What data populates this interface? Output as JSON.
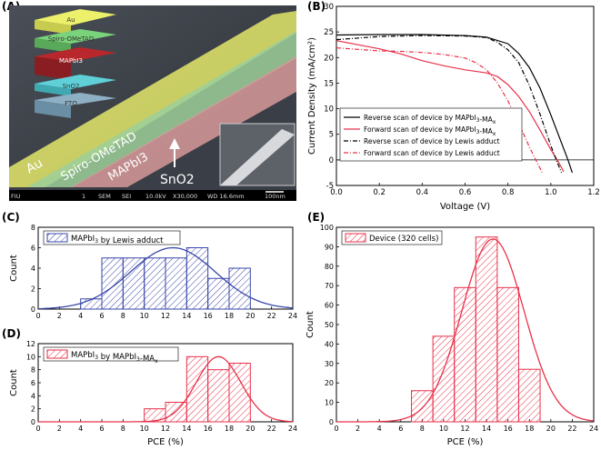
{
  "panels": {
    "a": "(A)",
    "b": "(B)",
    "c": "(C)",
    "d": "(D)",
    "e": "(E)"
  },
  "sem": {
    "layers": [
      "Au",
      "Spiro-OMeTAD",
      "MAPbI3",
      "SnO2",
      "FTO"
    ],
    "labels": {
      "au": "Au",
      "spiro": "Spiro-OMeTAD",
      "mapbi": "MAPbI3",
      "sno2": "SnO2"
    },
    "databar": {
      "vendor": "FIU",
      "n": "1",
      "mode": "SEM",
      "det": "SEI",
      "kv": "10.0kV",
      "mag": "X30,000",
      "wd": "WD 16.6mm",
      "scale": "100nm"
    },
    "colors": {
      "au": "#e3e86a",
      "spiro": "#9ccf9a",
      "mapbi": "#d89a9a",
      "sno2": "#9ad8de",
      "fto": "#b0c7d6",
      "inset_au": "#ecf06a",
      "inset_spiro": "#7ad27a",
      "inset_mapbi": "#b8272c",
      "inset_sno2": "#5fd0d8",
      "inset_fto": "#8eb0c4"
    }
  },
  "chart_data": [
    {
      "panel": "B",
      "type": "line",
      "xlabel": "Voltage (V)",
      "ylabel": "Current Density (mA/cm²)",
      "xlim": [
        0.0,
        1.2
      ],
      "ylim": [
        -5,
        30
      ],
      "xticks": [
        "0.0",
        "0.2",
        "0.4",
        "0.6",
        "0.8",
        "1.0",
        "1.2"
      ],
      "yticks": [
        "-5",
        "0",
        "5",
        "10",
        "15",
        "20",
        "25",
        "30"
      ],
      "legend_position": "bottom-left",
      "series": [
        {
          "name": "Reverse scan of device by MAPbI3-MAx",
          "color": "#000000",
          "dash": "solid",
          "points": [
            [
              0,
              24.4
            ],
            [
              0.2,
              24.5
            ],
            [
              0.4,
              24.5
            ],
            [
              0.6,
              24.3
            ],
            [
              0.7,
              24.0
            ],
            [
              0.8,
              22.7
            ],
            [
              0.85,
              20.8
            ],
            [
              0.9,
              18.0
            ],
            [
              0.95,
              14.0
            ],
            [
              1.0,
              8.8
            ],
            [
              1.05,
              3.3
            ],
            [
              1.08,
              0.0
            ],
            [
              1.1,
              -2.5
            ]
          ]
        },
        {
          "name": "Forward scan of device by MAPbI3-MAx",
          "color": "#e8314a",
          "dash": "solid",
          "points": [
            [
              0,
              23.3
            ],
            [
              0.1,
              22.5
            ],
            [
              0.2,
              21.7
            ],
            [
              0.3,
              20.7
            ],
            [
              0.4,
              19.4
            ],
            [
              0.5,
              18.4
            ],
            [
              0.6,
              17.6
            ],
            [
              0.7,
              17.0
            ],
            [
              0.75,
              16.3
            ],
            [
              0.8,
              14.7
            ],
            [
              0.85,
              12.4
            ],
            [
              0.9,
              9.4
            ],
            [
              0.95,
              5.8
            ],
            [
              1.0,
              2.0
            ],
            [
              1.03,
              0.0
            ],
            [
              1.06,
              -2.3
            ]
          ]
        },
        {
          "name": "Reverse scan of device by Lewis adduct",
          "color": "#000000",
          "dash": "dashdot",
          "points": [
            [
              0,
              23.5
            ],
            [
              0.2,
              24.1
            ],
            [
              0.4,
              24.3
            ],
            [
              0.6,
              24.2
            ],
            [
              0.7,
              23.9
            ],
            [
              0.75,
              23.0
            ],
            [
              0.8,
              21.5
            ],
            [
              0.85,
              19.0
            ],
            [
              0.9,
              14.5
            ],
            [
              0.95,
              8.9
            ],
            [
              1.0,
              2.8
            ],
            [
              1.03,
              -0.5
            ],
            [
              1.05,
              -2.5
            ]
          ]
        },
        {
          "name": "Forward scan of device by Lewis adduct",
          "color": "#e8314a",
          "dash": "dashdot",
          "points": [
            [
              0,
              21.9
            ],
            [
              0.1,
              21.6
            ],
            [
              0.2,
              21.3
            ],
            [
              0.3,
              21.2
            ],
            [
              0.4,
              21.0
            ],
            [
              0.5,
              20.6
            ],
            [
              0.6,
              19.9
            ],
            [
              0.65,
              19.0
            ],
            [
              0.7,
              17.6
            ],
            [
              0.75,
              15.1
            ],
            [
              0.8,
              11.5
            ],
            [
              0.85,
              7.2
            ],
            [
              0.9,
              2.5
            ],
            [
              0.93,
              0.0
            ],
            [
              0.96,
              -2.5
            ]
          ]
        }
      ]
    },
    {
      "panel": "C",
      "type": "bar",
      "legend": "MAPbI3 by Lewis adduct",
      "ylabel": "Count",
      "xlim": [
        0,
        24
      ],
      "ylim": [
        0,
        8
      ],
      "xticks": [
        "0",
        "2",
        "4",
        "6",
        "8",
        "10",
        "12",
        "14",
        "16",
        "18",
        "20",
        "22",
        "24"
      ],
      "yticks": [
        "0",
        "2",
        "4",
        "6",
        "8"
      ],
      "bin_edges": [
        4,
        6,
        8,
        10,
        12,
        14,
        16,
        18,
        20
      ],
      "values": [
        1,
        5,
        5,
        5,
        5,
        6,
        3,
        4
      ],
      "fit": {
        "mean": 12.7,
        "sd": 4.0,
        "peak": 6.0
      },
      "color": "#3a47a8"
    },
    {
      "panel": "D",
      "type": "bar",
      "legend": "MAPbI3 by MAPbI3-MAx",
      "ylabel": "Count",
      "xlabel": "PCE (%)",
      "xlim": [
        0,
        24
      ],
      "ylim": [
        0,
        12
      ],
      "xticks": [
        "0",
        "2",
        "4",
        "6",
        "8",
        "10",
        "12",
        "14",
        "16",
        "18",
        "20",
        "22",
        "24"
      ],
      "yticks": [
        "0",
        "2",
        "4",
        "6",
        "8",
        "10",
        "12"
      ],
      "bin_edges": [
        10,
        12,
        14,
        16,
        18,
        20
      ],
      "values": [
        2,
        3,
        10,
        8,
        9
      ],
      "fit": {
        "mean": 17.0,
        "sd": 2.1,
        "peak": 10.0
      },
      "color": "#e8314a"
    },
    {
      "panel": "E",
      "type": "bar",
      "legend": "Device (320 cells)",
      "ylabel": "Count",
      "xlabel": "PCE (%)",
      "xlim": [
        0,
        24
      ],
      "ylim": [
        0,
        100
      ],
      "xticks": [
        "0",
        "2",
        "4",
        "6",
        "8",
        "10",
        "12",
        "14",
        "16",
        "18",
        "20",
        "22",
        "24"
      ],
      "yticks": [
        "0",
        "10",
        "20",
        "30",
        "40",
        "50",
        "60",
        "70",
        "80",
        "90",
        "100"
      ],
      "bin_edges": [
        7,
        9,
        11,
        13,
        15,
        17,
        19
      ],
      "values": [
        16,
        44,
        69,
        95,
        69,
        27
      ],
      "fit": {
        "mean": 14.6,
        "sd": 2.9,
        "peak": 94.0
      },
      "color": "#e8314a"
    }
  ]
}
